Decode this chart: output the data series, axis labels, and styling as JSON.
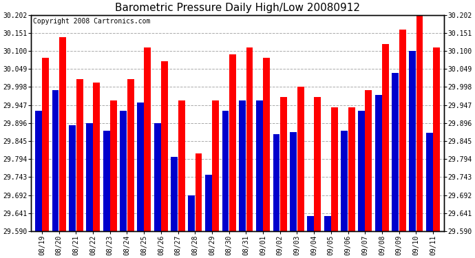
{
  "title": "Barometric Pressure Daily High/Low 20080912",
  "copyright": "Copyright 2008 Cartronics.com",
  "dates": [
    "08/19",
    "08/20",
    "08/21",
    "08/22",
    "08/23",
    "08/24",
    "08/25",
    "08/26",
    "08/27",
    "08/28",
    "08/29",
    "08/30",
    "08/31",
    "09/01",
    "09/02",
    "09/03",
    "09/04",
    "09/05",
    "09/06",
    "09/07",
    "09/08",
    "09/09",
    "09/10",
    "09/11"
  ],
  "highs": [
    30.08,
    30.14,
    30.02,
    30.01,
    29.96,
    30.02,
    30.11,
    30.07,
    29.96,
    29.81,
    29.96,
    30.09,
    30.11,
    30.08,
    29.97,
    29.998,
    29.97,
    29.94,
    29.94,
    29.99,
    30.12,
    30.16,
    30.21,
    30.11
  ],
  "lows": [
    29.93,
    29.99,
    29.89,
    29.895,
    29.875,
    29.93,
    29.955,
    29.895,
    29.8,
    29.692,
    29.75,
    29.93,
    29.96,
    29.96,
    29.865,
    29.87,
    29.632,
    29.632,
    29.875,
    29.93,
    29.975,
    30.038,
    30.1,
    29.868
  ],
  "high_color": "#ff0000",
  "low_color": "#0000cc",
  "bg_color": "#ffffff",
  "grid_color": "#aaaaaa",
  "ylim_min": 29.59,
  "ylim_max": 30.202,
  "yticks": [
    29.59,
    29.641,
    29.692,
    29.743,
    29.794,
    29.845,
    29.896,
    29.947,
    29.998,
    30.049,
    30.1,
    30.151,
    30.202
  ],
  "title_fontsize": 11,
  "copyright_fontsize": 7,
  "tick_fontsize": 7
}
